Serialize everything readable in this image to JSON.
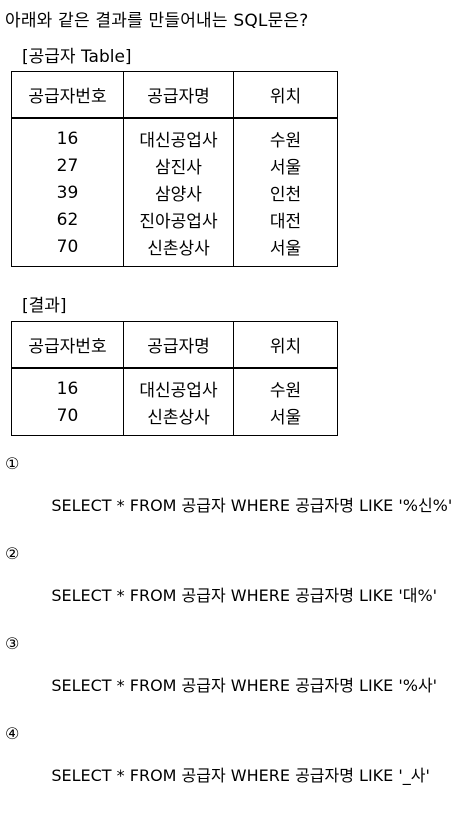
{
  "question": "아래와 같은 결과를 만들어내는 SQL문은?",
  "supplier_table": {
    "caption": "[공급자 Table]",
    "headers": [
      "공급자번호",
      "공급자명",
      "위치"
    ],
    "rows": [
      [
        "16",
        "대신공업사",
        "수원"
      ],
      [
        "27",
        "삼진사",
        "서울"
      ],
      [
        "39",
        "삼양사",
        "인천"
      ],
      [
        "62",
        "진아공업사",
        "대전"
      ],
      [
        "70",
        "신촌상사",
        "서울"
      ]
    ]
  },
  "result_table": {
    "caption": "[결과]",
    "headers": [
      "공급자번호",
      "공급자명",
      "위치"
    ],
    "rows": [
      [
        "16",
        "대신공업사",
        "수원"
      ],
      [
        "70",
        "신촌상사",
        "서울"
      ]
    ]
  },
  "choices": [
    {
      "num": "①",
      "text": "SELECT * FROM 공급자 WHERE 공급자명 LIKE '%신%'"
    },
    {
      "num": "②",
      "text": "SELECT * FROM 공급자 WHERE 공급자명 LIKE '대%'"
    },
    {
      "num": "③",
      "text": "SELECT * FROM 공급자 WHERE 공급자명 LIKE '%사'"
    },
    {
      "num": "④",
      "text": "SELECT * FROM 공급자 WHERE 공급자명 LIKE '_사'"
    }
  ]
}
